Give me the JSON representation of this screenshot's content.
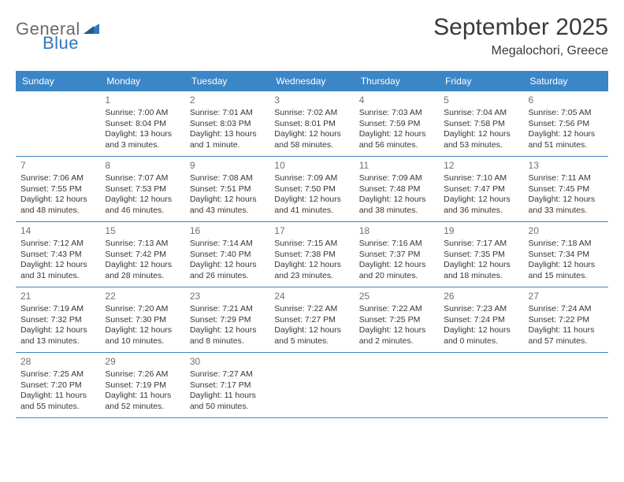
{
  "logo": {
    "text_general": "General",
    "text_blue": "Blue",
    "general_color": "#6a6a6a",
    "blue_color": "#2f78bd"
  },
  "header": {
    "title": "September 2025",
    "location": "Megalochori, Greece"
  },
  "colors": {
    "header_bar": "#3b86c6",
    "divider": "#3b86c6",
    "day_number": "#707070",
    "body_text": "#363636",
    "background": "#ffffff"
  },
  "day_names": [
    "Sunday",
    "Monday",
    "Tuesday",
    "Wednesday",
    "Thursday",
    "Friday",
    "Saturday"
  ],
  "weeks": [
    [
      {
        "num": "",
        "sunrise": "",
        "sunset": "",
        "daylight": ""
      },
      {
        "num": "1",
        "sunrise": "Sunrise: 7:00 AM",
        "sunset": "Sunset: 8:04 PM",
        "daylight": "Daylight: 13 hours and 3 minutes."
      },
      {
        "num": "2",
        "sunrise": "Sunrise: 7:01 AM",
        "sunset": "Sunset: 8:03 PM",
        "daylight": "Daylight: 13 hours and 1 minute."
      },
      {
        "num": "3",
        "sunrise": "Sunrise: 7:02 AM",
        "sunset": "Sunset: 8:01 PM",
        "daylight": "Daylight: 12 hours and 58 minutes."
      },
      {
        "num": "4",
        "sunrise": "Sunrise: 7:03 AM",
        "sunset": "Sunset: 7:59 PM",
        "daylight": "Daylight: 12 hours and 56 minutes."
      },
      {
        "num": "5",
        "sunrise": "Sunrise: 7:04 AM",
        "sunset": "Sunset: 7:58 PM",
        "daylight": "Daylight: 12 hours and 53 minutes."
      },
      {
        "num": "6",
        "sunrise": "Sunrise: 7:05 AM",
        "sunset": "Sunset: 7:56 PM",
        "daylight": "Daylight: 12 hours and 51 minutes."
      }
    ],
    [
      {
        "num": "7",
        "sunrise": "Sunrise: 7:06 AM",
        "sunset": "Sunset: 7:55 PM",
        "daylight": "Daylight: 12 hours and 48 minutes."
      },
      {
        "num": "8",
        "sunrise": "Sunrise: 7:07 AM",
        "sunset": "Sunset: 7:53 PM",
        "daylight": "Daylight: 12 hours and 46 minutes."
      },
      {
        "num": "9",
        "sunrise": "Sunrise: 7:08 AM",
        "sunset": "Sunset: 7:51 PM",
        "daylight": "Daylight: 12 hours and 43 minutes."
      },
      {
        "num": "10",
        "sunrise": "Sunrise: 7:09 AM",
        "sunset": "Sunset: 7:50 PM",
        "daylight": "Daylight: 12 hours and 41 minutes."
      },
      {
        "num": "11",
        "sunrise": "Sunrise: 7:09 AM",
        "sunset": "Sunset: 7:48 PM",
        "daylight": "Daylight: 12 hours and 38 minutes."
      },
      {
        "num": "12",
        "sunrise": "Sunrise: 7:10 AM",
        "sunset": "Sunset: 7:47 PM",
        "daylight": "Daylight: 12 hours and 36 minutes."
      },
      {
        "num": "13",
        "sunrise": "Sunrise: 7:11 AM",
        "sunset": "Sunset: 7:45 PM",
        "daylight": "Daylight: 12 hours and 33 minutes."
      }
    ],
    [
      {
        "num": "14",
        "sunrise": "Sunrise: 7:12 AM",
        "sunset": "Sunset: 7:43 PM",
        "daylight": "Daylight: 12 hours and 31 minutes."
      },
      {
        "num": "15",
        "sunrise": "Sunrise: 7:13 AM",
        "sunset": "Sunset: 7:42 PM",
        "daylight": "Daylight: 12 hours and 28 minutes."
      },
      {
        "num": "16",
        "sunrise": "Sunrise: 7:14 AM",
        "sunset": "Sunset: 7:40 PM",
        "daylight": "Daylight: 12 hours and 26 minutes."
      },
      {
        "num": "17",
        "sunrise": "Sunrise: 7:15 AM",
        "sunset": "Sunset: 7:38 PM",
        "daylight": "Daylight: 12 hours and 23 minutes."
      },
      {
        "num": "18",
        "sunrise": "Sunrise: 7:16 AM",
        "sunset": "Sunset: 7:37 PM",
        "daylight": "Daylight: 12 hours and 20 minutes."
      },
      {
        "num": "19",
        "sunrise": "Sunrise: 7:17 AM",
        "sunset": "Sunset: 7:35 PM",
        "daylight": "Daylight: 12 hours and 18 minutes."
      },
      {
        "num": "20",
        "sunrise": "Sunrise: 7:18 AM",
        "sunset": "Sunset: 7:34 PM",
        "daylight": "Daylight: 12 hours and 15 minutes."
      }
    ],
    [
      {
        "num": "21",
        "sunrise": "Sunrise: 7:19 AM",
        "sunset": "Sunset: 7:32 PM",
        "daylight": "Daylight: 12 hours and 13 minutes."
      },
      {
        "num": "22",
        "sunrise": "Sunrise: 7:20 AM",
        "sunset": "Sunset: 7:30 PM",
        "daylight": "Daylight: 12 hours and 10 minutes."
      },
      {
        "num": "23",
        "sunrise": "Sunrise: 7:21 AM",
        "sunset": "Sunset: 7:29 PM",
        "daylight": "Daylight: 12 hours and 8 minutes."
      },
      {
        "num": "24",
        "sunrise": "Sunrise: 7:22 AM",
        "sunset": "Sunset: 7:27 PM",
        "daylight": "Daylight: 12 hours and 5 minutes."
      },
      {
        "num": "25",
        "sunrise": "Sunrise: 7:22 AM",
        "sunset": "Sunset: 7:25 PM",
        "daylight": "Daylight: 12 hours and 2 minutes."
      },
      {
        "num": "26",
        "sunrise": "Sunrise: 7:23 AM",
        "sunset": "Sunset: 7:24 PM",
        "daylight": "Daylight: 12 hours and 0 minutes."
      },
      {
        "num": "27",
        "sunrise": "Sunrise: 7:24 AM",
        "sunset": "Sunset: 7:22 PM",
        "daylight": "Daylight: 11 hours and 57 minutes."
      }
    ],
    [
      {
        "num": "28",
        "sunrise": "Sunrise: 7:25 AM",
        "sunset": "Sunset: 7:20 PM",
        "daylight": "Daylight: 11 hours and 55 minutes."
      },
      {
        "num": "29",
        "sunrise": "Sunrise: 7:26 AM",
        "sunset": "Sunset: 7:19 PM",
        "daylight": "Daylight: 11 hours and 52 minutes."
      },
      {
        "num": "30",
        "sunrise": "Sunrise: 7:27 AM",
        "sunset": "Sunset: 7:17 PM",
        "daylight": "Daylight: 11 hours and 50 minutes."
      },
      {
        "num": "",
        "sunrise": "",
        "sunset": "",
        "daylight": ""
      },
      {
        "num": "",
        "sunrise": "",
        "sunset": "",
        "daylight": ""
      },
      {
        "num": "",
        "sunrise": "",
        "sunset": "",
        "daylight": ""
      },
      {
        "num": "",
        "sunrise": "",
        "sunset": "",
        "daylight": ""
      }
    ]
  ]
}
